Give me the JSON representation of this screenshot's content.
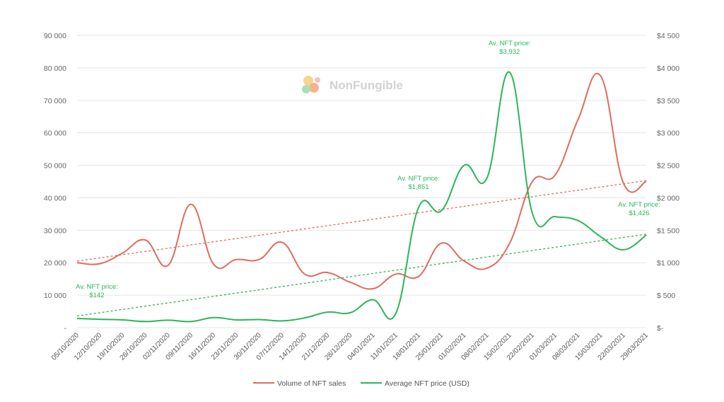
{
  "chart_data": {
    "type": "line",
    "watermark": "NonFungible",
    "colors": {
      "sales": "#e06c5c",
      "price": "#2bb55a",
      "grid": "#e5e5e5"
    },
    "x": [
      "05/10/2020",
      "12/10/2020",
      "19/10/2020",
      "26/10/2020",
      "02/11/2020",
      "09/11/2020",
      "16/11/2020",
      "23/11/2020",
      "30/11/2020",
      "07/12/2020",
      "14/12/2020",
      "21/12/2020",
      "28/12/2020",
      "04/01/2021",
      "11/01/2021",
      "18/01/2021",
      "25/01/2021",
      "01/02/2021",
      "08/02/2021",
      "15/02/2021",
      "22/02/2021",
      "01/03/2021",
      "08/03/2021",
      "15/03/2021",
      "22/03/2021",
      "29/03/2021"
    ],
    "left_axis": {
      "ylim": [
        0,
        90000
      ],
      "ticks": [
        "-",
        "10 000",
        "20 000",
        "30 000",
        "40 000",
        "50 000",
        "60 000",
        "70 000",
        "80 000",
        "90 000"
      ]
    },
    "right_axis": {
      "ylim": [
        0,
        4500
      ],
      "ticks": [
        "$-",
        "$ 500",
        "$1 000",
        "$1 500",
        "$2 000",
        "$2 500",
        "$3 000",
        "$3 500",
        "$4 000",
        "$4 500"
      ]
    },
    "series": [
      {
        "name": "Volume of NFT sales",
        "axis": "left",
        "color": "#e06c5c",
        "values": [
          20000,
          19700,
          23000,
          27000,
          19200,
          38000,
          19500,
          21000,
          21000,
          26300,
          16500,
          17000,
          14000,
          12000,
          16500,
          15800,
          26000,
          20500,
          18300,
          26000,
          45000,
          47000,
          64000,
          77500,
          44500,
          45000
        ],
        "trend": [
          20500,
          45300
        ]
      },
      {
        "name": "Average NFT price (USD)",
        "axis": "right",
        "color": "#2bb55a",
        "values": [
          142,
          130,
          120,
          95,
          115,
          95,
          155,
          120,
          125,
          105,
          150,
          240,
          230,
          430,
          220,
          1851,
          1800,
          2500,
          2300,
          3932,
          1760,
          1710,
          1650,
          1400,
          1200,
          1426
        ],
        "trend": [
          180,
          1440
        ]
      }
    ],
    "annotations": [
      {
        "series": 1,
        "index": 0,
        "label": "Av. NFT price:",
        "value": "$142"
      },
      {
        "series": 1,
        "index": 15,
        "label": "Av. NFT price:",
        "value": "$1,851"
      },
      {
        "series": 1,
        "index": 19,
        "label": "Av. NFT price:",
        "value": "$3,932"
      },
      {
        "series": 1,
        "index": 25,
        "label": "Av. NFT price:",
        "value": "$1,426"
      }
    ],
    "legend": {
      "position": "bottom"
    },
    "grid": true
  }
}
